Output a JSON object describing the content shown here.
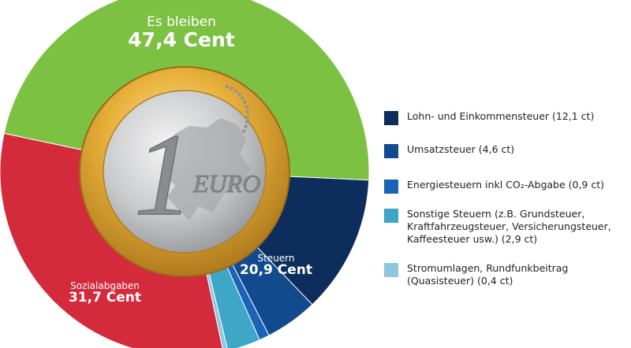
{
  "chart_data": {
    "type": "pie",
    "unit": "Cent",
    "segments": [
      {
        "key": "remaining",
        "value": 47.4,
        "color": "#7cc142"
      },
      {
        "key": "lohnsteuer",
        "value": 12.1,
        "color": "#0d2e5c"
      },
      {
        "key": "umsatzsteuer",
        "value": 4.6,
        "color": "#124a8e"
      },
      {
        "key": "energiesteuern",
        "value": 0.9,
        "color": "#1a63b6"
      },
      {
        "key": "sonstige",
        "value": 2.9,
        "color": "#3ea6c6"
      },
      {
        "key": "stromumlagen",
        "value": 0.4,
        "color": "#8cc6df"
      },
      {
        "key": "sozialabgaben",
        "value": 31.7,
        "color": "#d42b3c"
      }
    ],
    "labels": {
      "remaining": {
        "top": "Es bleiben",
        "value": "47,4 Cent"
      },
      "taxes": {
        "top": "Steuern",
        "value": "20,9 Cent"
      },
      "social": {
        "top": "Sozialabgaben",
        "value": "31,7 Cent"
      }
    },
    "legend": [
      {
        "label": "Lohn- und Einkommensteuer (12,1 ct)",
        "color": "#0d2e5c"
      },
      {
        "label": "Umsatzsteuer (4,6 ct)",
        "color": "#124a8e"
      },
      {
        "label": "Energiesteuern inkl CO₂-Abgabe (0,9 ct)",
        "color": "#1a63b6"
      },
      {
        "label": "Sonstige Steuern (z.B. Grundsteuer,\nKraftfahrzeugsteuer, Versicherungsteuer,\nKaffeesteuer usw.) (2,9 ct)",
        "color": "#3ea6c6"
      },
      {
        "label": "Stromumlagen, Rundfunkbeitrag\n(Quasisteuer) (0,4 ct)",
        "color": "#8cc6df"
      }
    ],
    "coin": {
      "numeral": "1",
      "text": "EURO"
    }
  }
}
